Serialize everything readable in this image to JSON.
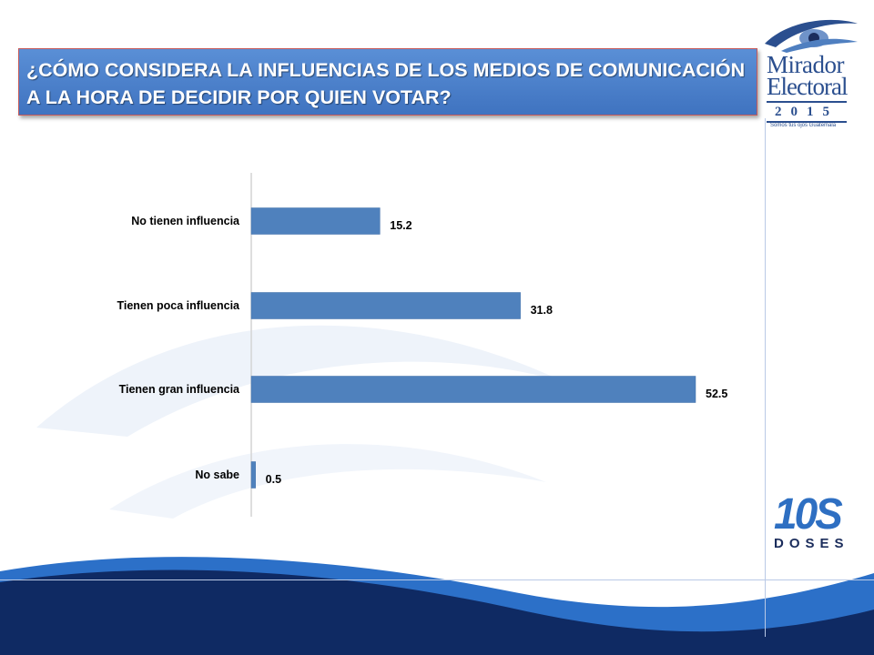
{
  "title": "¿CÓMO CONSIDERA LA INFLUENCIAS DE LOS MEDIOS DE COMUNICACIÓN A LA HORA DE DECIDIR POR QUIEN VOTAR?",
  "logo_top": {
    "line1": "Mirador",
    "line2": "Electoral",
    "year": "2015",
    "tagline": "Somos tus ojos Guatemala"
  },
  "logo_bottom": {
    "number": "10S",
    "word": "DOSES"
  },
  "colors": {
    "bar": "#4f81bd",
    "title_bg": "#4a7fcb",
    "navy": "#0f2a63",
    "accent_blue": "#2d73cf"
  },
  "chart_data": {
    "type": "bar",
    "orientation": "horizontal",
    "categories": [
      "No tienen influencia",
      "Tienen poca influencia",
      "Tienen gran influencia",
      "No sabe"
    ],
    "values": [
      15.2,
      31.8,
      52.5,
      0.5
    ],
    "value_labels": [
      "15.2",
      "31.8",
      "52.5",
      "0.5"
    ],
    "title": "",
    "xlabel": "",
    "ylabel": "",
    "xlim": [
      0,
      52.5
    ],
    "grid": false,
    "legend": "none"
  }
}
